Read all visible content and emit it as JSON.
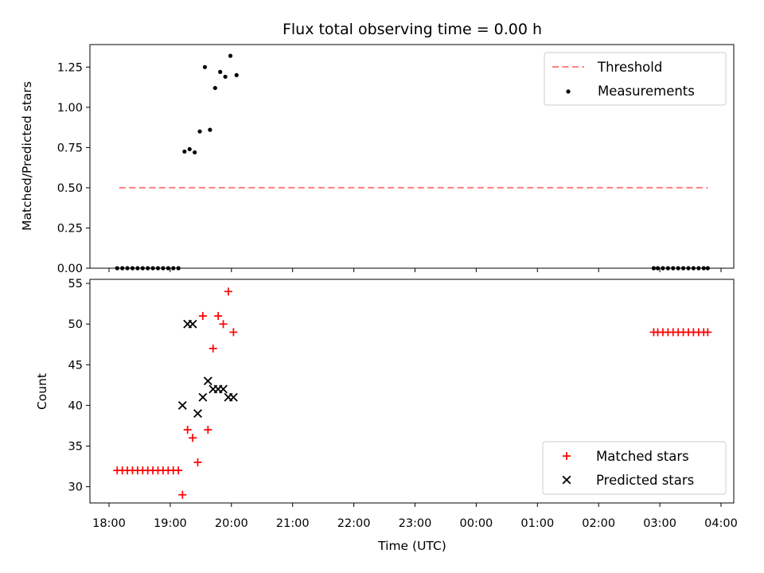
{
  "chart_data": [
    {
      "type": "scatter",
      "title": "Flux total observing time = 0.00 h",
      "ylabel": "Matched/Predicted stars",
      "xlabel": "",
      "ylim": [
        0.0,
        1.39
      ],
      "yticks": [
        0.0,
        0.25,
        0.5,
        0.75,
        1.0,
        1.25
      ],
      "ytick_labels": [
        "0.00",
        "0.25",
        "0.50",
        "0.75",
        "1.00",
        "1.25"
      ],
      "legend_position": "top-right",
      "threshold": {
        "name": "Threshold",
        "value": 0.5,
        "x_start": "18:10",
        "x_end": "03:47",
        "color": "#ff7f7f",
        "style": "dashed"
      },
      "series": [
        {
          "name": "Measurements",
          "marker": "dot",
          "color": "#000000",
          "points": [
            [
              "18:08",
              0.0
            ],
            [
              "18:13",
              0.0
            ],
            [
              "18:18",
              0.0
            ],
            [
              "18:23",
              0.0
            ],
            [
              "18:28",
              0.0
            ],
            [
              "18:33",
              0.0
            ],
            [
              "18:38",
              0.0
            ],
            [
              "18:43",
              0.0
            ],
            [
              "18:48",
              0.0
            ],
            [
              "18:53",
              0.0
            ],
            [
              "18:58",
              0.0
            ],
            [
              "19:03",
              0.0
            ],
            [
              "19:08",
              0.0
            ],
            [
              "19:14",
              0.725
            ],
            [
              "19:19",
              0.74
            ],
            [
              "19:24",
              0.72
            ],
            [
              "19:29",
              0.85
            ],
            [
              "19:34",
              1.25
            ],
            [
              "19:39",
              0.86
            ],
            [
              "19:44",
              1.12
            ],
            [
              "19:49",
              1.22
            ],
            [
              "19:54",
              1.19
            ],
            [
              "19:59",
              1.32
            ],
            [
              "20:05",
              1.2
            ],
            [
              "02:54",
              0.0
            ],
            [
              "02:58",
              0.0
            ],
            [
              "03:03",
              0.0
            ],
            [
              "03:08",
              0.0
            ],
            [
              "03:13",
              0.0
            ],
            [
              "03:18",
              0.0
            ],
            [
              "03:23",
              0.0
            ],
            [
              "03:28",
              0.0
            ],
            [
              "03:33",
              0.0
            ],
            [
              "03:38",
              0.0
            ],
            [
              "03:43",
              0.0
            ],
            [
              "03:47",
              0.0
            ]
          ]
        }
      ]
    },
    {
      "type": "scatter",
      "title": "",
      "ylabel": "Count",
      "xlabel": "Time (UTC)",
      "ylim": [
        28,
        55.5
      ],
      "yticks": [
        30,
        35,
        40,
        45,
        50,
        55
      ],
      "ytick_labels": [
        "30",
        "35",
        "40",
        "45",
        "50",
        "55"
      ],
      "xticks": [
        "18:00",
        "19:00",
        "20:00",
        "21:00",
        "22:00",
        "23:00",
        "00:00",
        "01:00",
        "02:00",
        "03:00",
        "04:00"
      ],
      "legend_position": "bottom-right",
      "series": [
        {
          "name": "Matched stars",
          "marker": "plus",
          "color": "#ff0000",
          "points": [
            [
              "18:08",
              32
            ],
            [
              "18:13",
              32
            ],
            [
              "18:18",
              32
            ],
            [
              "18:23",
              32
            ],
            [
              "18:28",
              32
            ],
            [
              "18:33",
              32
            ],
            [
              "18:38",
              32
            ],
            [
              "18:43",
              32
            ],
            [
              "18:48",
              32
            ],
            [
              "18:53",
              32
            ],
            [
              "18:58",
              32
            ],
            [
              "19:03",
              32
            ],
            [
              "19:08",
              32
            ],
            [
              "19:12",
              29
            ],
            [
              "19:17",
              37
            ],
            [
              "19:22",
              36
            ],
            [
              "19:27",
              33
            ],
            [
              "19:32",
              51
            ],
            [
              "19:37",
              37
            ],
            [
              "19:42",
              47
            ],
            [
              "19:47",
              51
            ],
            [
              "19:52",
              50
            ],
            [
              "19:57",
              54
            ],
            [
              "20:02",
              49
            ],
            [
              "02:54",
              49
            ],
            [
              "02:58",
              49
            ],
            [
              "03:03",
              49
            ],
            [
              "03:08",
              49
            ],
            [
              "03:13",
              49
            ],
            [
              "03:18",
              49
            ],
            [
              "03:23",
              49
            ],
            [
              "03:28",
              49
            ],
            [
              "03:33",
              49
            ],
            [
              "03:38",
              49
            ],
            [
              "03:43",
              49
            ],
            [
              "03:47",
              49
            ]
          ]
        },
        {
          "name": "Predicted stars",
          "marker": "x",
          "color": "#000000",
          "points": [
            [
              "19:12",
              40
            ],
            [
              "19:17",
              50
            ],
            [
              "19:22",
              50
            ],
            [
              "19:27",
              39
            ],
            [
              "19:32",
              41
            ],
            [
              "19:37",
              43
            ],
            [
              "19:42",
              42
            ],
            [
              "19:47",
              42
            ],
            [
              "19:52",
              42
            ],
            [
              "19:57",
              41
            ],
            [
              "20:02",
              41
            ]
          ]
        }
      ]
    }
  ]
}
